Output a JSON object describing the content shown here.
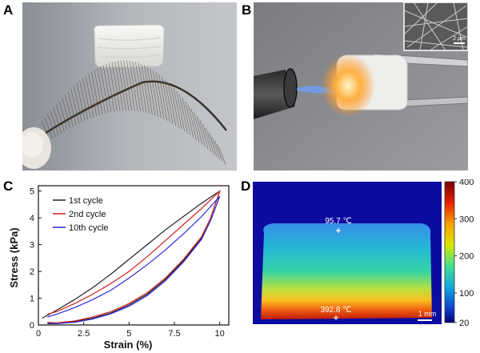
{
  "panels": {
    "a": {
      "letter": "A"
    },
    "b": {
      "letter": "B",
      "inset_scale": "2 μm"
    },
    "c": {
      "letter": "C"
    },
    "d": {
      "letter": "D",
      "scale_bar": "1 mm",
      "hot_spot": {
        "label": "392.8 ℃"
      },
      "cool_spot": {
        "label": "95.7 ℃"
      },
      "colorbar": {
        "ticks": [
          "400",
          "300",
          "200",
          "100",
          "20"
        ],
        "min": 20,
        "max": 400
      }
    }
  },
  "chart_data": {
    "type": "line",
    "xlabel": "Strain (%)",
    "ylabel": "Stress (kPa)",
    "xlim": [
      0,
      10.5
    ],
    "ylim": [
      0,
      5.2
    ],
    "xticks": [
      "0",
      "2.5",
      "5",
      "7.5",
      "10"
    ],
    "yticks": [
      "0",
      "1",
      "2",
      "3",
      "4",
      "5"
    ],
    "legend_position": "top-left",
    "series": [
      {
        "name": "1st cycle",
        "color": "#222222",
        "loading": [
          [
            0.2,
            0.25
          ],
          [
            1,
            0.55
          ],
          [
            2,
            0.95
          ],
          [
            3,
            1.4
          ],
          [
            4,
            1.9
          ],
          [
            5,
            2.45
          ],
          [
            6,
            3.0
          ],
          [
            7,
            3.55
          ],
          [
            8,
            4.05
          ],
          [
            9,
            4.55
          ],
          [
            10,
            5.0
          ]
        ],
        "unloading": [
          [
            10,
            5.0
          ],
          [
            9.5,
            4.0
          ],
          [
            9,
            3.25
          ],
          [
            8,
            2.4
          ],
          [
            7,
            1.7
          ],
          [
            6,
            1.15
          ],
          [
            5,
            0.75
          ],
          [
            4,
            0.45
          ],
          [
            3,
            0.25
          ],
          [
            2,
            0.12
          ],
          [
            1,
            0.05
          ],
          [
            0.5,
            0.05
          ]
        ]
      },
      {
        "name": "2nd cycle",
        "color": "#d42020",
        "loading": [
          [
            0.5,
            0.4
          ],
          [
            1,
            0.5
          ],
          [
            2,
            0.8
          ],
          [
            3,
            1.15
          ],
          [
            4,
            1.55
          ],
          [
            5,
            2.0
          ],
          [
            6,
            2.55
          ],
          [
            7,
            3.15
          ],
          [
            8,
            3.75
          ],
          [
            9,
            4.35
          ],
          [
            10,
            5.0
          ]
        ],
        "unloading": [
          [
            10,
            5.0
          ],
          [
            9.5,
            4.0
          ],
          [
            9,
            3.3
          ],
          [
            8,
            2.45
          ],
          [
            7,
            1.75
          ],
          [
            6,
            1.2
          ],
          [
            5,
            0.8
          ],
          [
            4,
            0.5
          ],
          [
            3,
            0.3
          ],
          [
            2,
            0.15
          ],
          [
            1,
            0.08
          ],
          [
            0.5,
            0.1
          ]
        ]
      },
      {
        "name": "10th cycle",
        "color": "#2a2ae0",
        "loading": [
          [
            0.5,
            0.3
          ],
          [
            1,
            0.4
          ],
          [
            2,
            0.65
          ],
          [
            3,
            0.95
          ],
          [
            4,
            1.3
          ],
          [
            5,
            1.75
          ],
          [
            6,
            2.25
          ],
          [
            7,
            2.8
          ],
          [
            8,
            3.4
          ],
          [
            9,
            4.05
          ],
          [
            10,
            4.8
          ]
        ],
        "unloading": [
          [
            10,
            4.8
          ],
          [
            9.5,
            3.9
          ],
          [
            9,
            3.2
          ],
          [
            8,
            2.35
          ],
          [
            7,
            1.65
          ],
          [
            6,
            1.1
          ],
          [
            5,
            0.7
          ],
          [
            4,
            0.42
          ],
          [
            3,
            0.22
          ],
          [
            2,
            0.1
          ],
          [
            1,
            0.05
          ],
          [
            0.5,
            0.08
          ]
        ]
      }
    ]
  }
}
